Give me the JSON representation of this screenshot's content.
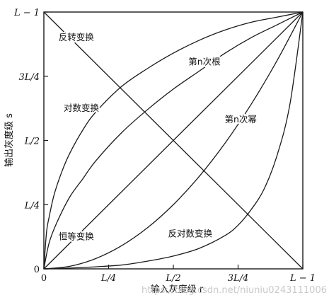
{
  "chart_data": {
    "type": "line",
    "title": "",
    "xlabel": "输入灰度级 r",
    "ylabel": "输出灰度级 s",
    "xlim": [
      0,
      1
    ],
    "ylim": [
      0,
      1
    ],
    "grid": false,
    "legend": "none",
    "x_ticks": [
      {
        "value": 0,
        "label": "0"
      },
      {
        "value": 0.25,
        "label": "L/4"
      },
      {
        "value": 0.5,
        "label": "L/2"
      },
      {
        "value": 0.75,
        "label": "3L/4"
      },
      {
        "value": 1,
        "label": "L − 1"
      }
    ],
    "y_ticks": [
      {
        "value": 0,
        "label": "0"
      },
      {
        "value": 0.25,
        "label": "L/4"
      },
      {
        "value": 0.5,
        "label": "L/2"
      },
      {
        "value": 0.75,
        "label": "3L/4"
      },
      {
        "value": 1,
        "label": "L − 1"
      }
    ],
    "series": [
      {
        "id": "negative",
        "name": "反转变换",
        "x": [
          0,
          1
        ],
        "y": [
          1,
          0
        ]
      },
      {
        "id": "identity",
        "name": "恒等变换",
        "x": [
          0,
          1
        ],
        "y": [
          0,
          1
        ]
      },
      {
        "id": "log",
        "name": "对数变换",
        "x": [
          0,
          0.01,
          0.02,
          0.04,
          0.07,
          0.1,
          0.15,
          0.2,
          0.3,
          0.4,
          0.5,
          0.6,
          0.7,
          0.8,
          0.9,
          1
        ],
        "y": [
          0,
          0.14,
          0.2,
          0.29,
          0.38,
          0.45,
          0.54,
          0.61,
          0.71,
          0.78,
          0.84,
          0.89,
          0.93,
          0.96,
          0.98,
          1
        ]
      },
      {
        "id": "nth_root",
        "name": "第n次根",
        "x": [
          0,
          0.02,
          0.05,
          0.1,
          0.15,
          0.2,
          0.3,
          0.4,
          0.5,
          0.6,
          0.7,
          0.8,
          0.9,
          1
        ],
        "y": [
          0,
          0.1,
          0.18,
          0.28,
          0.35,
          0.42,
          0.53,
          0.62,
          0.7,
          0.77,
          0.84,
          0.9,
          0.95,
          1
        ]
      },
      {
        "id": "nth_power",
        "name": "第n次幂",
        "x": [
          0,
          0.1,
          0.2,
          0.3,
          0.4,
          0.5,
          0.6,
          0.7,
          0.8,
          0.9,
          1
        ],
        "y": [
          0,
          0.01,
          0.04,
          0.09,
          0.16,
          0.25,
          0.36,
          0.49,
          0.64,
          0.81,
          1
        ]
      },
      {
        "id": "inverse_log",
        "name": "反对数变换",
        "x": [
          0,
          0.1,
          0.2,
          0.3,
          0.4,
          0.5,
          0.6,
          0.7,
          0.75,
          0.8,
          0.85,
          0.9,
          0.95,
          1
        ],
        "y": [
          0,
          0.003,
          0.008,
          0.015,
          0.03,
          0.05,
          0.08,
          0.13,
          0.17,
          0.23,
          0.31,
          0.44,
          0.64,
          1
        ]
      }
    ],
    "annotations": [
      {
        "series": "negative",
        "text": "反转变换",
        "x": 0.125,
        "y": 0.89
      },
      {
        "series": "nth_root",
        "text": "第n次根",
        "x": 0.62,
        "y": 0.795
      },
      {
        "series": "log",
        "text": "对数变换",
        "x": 0.145,
        "y": 0.615
      },
      {
        "series": "nth_power",
        "text": "第n次幂",
        "x": 0.76,
        "y": 0.57
      },
      {
        "series": "identity",
        "text": "恒等变换",
        "x": 0.125,
        "y": 0.115
      },
      {
        "series": "inverse_log",
        "text": "反对数变换",
        "x": 0.565,
        "y": 0.125
      }
    ]
  },
  "watermark": "https://blog.csdn.net/niuniu0243111006"
}
